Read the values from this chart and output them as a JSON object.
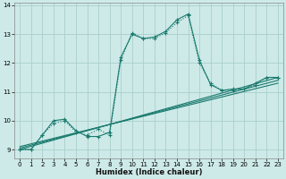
{
  "xlabel": "Humidex (Indice chaleur)",
  "background_color": "#cdeae8",
  "grid_color": "#aacfcc",
  "line_color": "#1a7a6e",
  "xlim": [
    -0.5,
    23.5
  ],
  "ylim": [
    8.7,
    14.1
  ],
  "yticks": [
    9,
    10,
    11,
    12,
    13,
    14
  ],
  "xticks": [
    0,
    1,
    2,
    3,
    4,
    5,
    6,
    7,
    8,
    9,
    10,
    11,
    12,
    13,
    14,
    15,
    16,
    17,
    18,
    19,
    20,
    21,
    22,
    23
  ],
  "dotted_line": {
    "x": [
      0,
      1,
      2,
      3,
      4,
      5,
      6,
      7,
      8,
      9,
      10,
      11,
      12,
      13,
      14,
      15,
      16,
      17,
      18,
      19,
      20,
      21,
      22,
      23
    ],
    "y": [
      9.0,
      9.0,
      9.5,
      9.9,
      10.0,
      9.6,
      9.5,
      9.7,
      9.5,
      12.1,
      13.05,
      12.85,
      12.85,
      13.05,
      13.4,
      13.65,
      12.0,
      11.3,
      11.05,
      11.05,
      11.1,
      11.25,
      11.5,
      11.5
    ]
  },
  "solid_curve": {
    "x": [
      0,
      1,
      2,
      3,
      4,
      5,
      6,
      7,
      8,
      9,
      10,
      11,
      12,
      13,
      14,
      15,
      16,
      17,
      18,
      19,
      20,
      21,
      22,
      23
    ],
    "y": [
      9.0,
      9.0,
      9.5,
      10.0,
      10.05,
      9.65,
      9.45,
      9.45,
      9.6,
      12.2,
      13.0,
      12.85,
      12.9,
      13.1,
      13.5,
      13.7,
      12.1,
      11.25,
      11.05,
      11.1,
      11.1,
      11.3,
      11.5,
      11.5
    ]
  },
  "regression_lines": [
    {
      "x": [
        0,
        23
      ],
      "y": [
        9.0,
        11.5
      ]
    },
    {
      "x": [
        0,
        23
      ],
      "y": [
        9.05,
        11.4
      ]
    },
    {
      "x": [
        0,
        23
      ],
      "y": [
        9.1,
        11.3
      ]
    }
  ]
}
